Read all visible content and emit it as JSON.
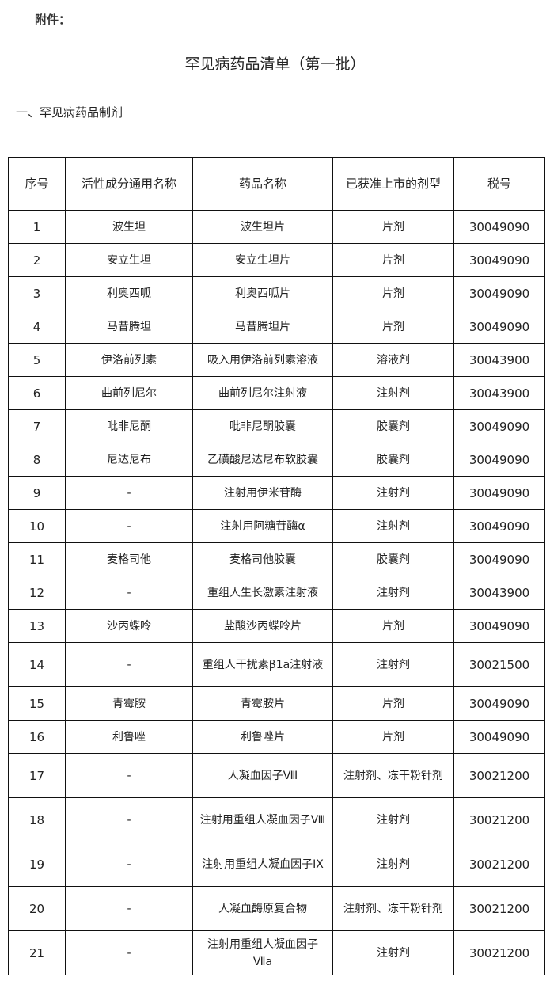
{
  "attachment_label": "附件：",
  "title": "罕见病药品清单（第一批）",
  "section_heading": "一、罕见病药品制剂",
  "table": {
    "headers": [
      "序号",
      "活性成分通用名称",
      "药品名称",
      "已获准上市的剂型",
      "税号"
    ],
    "rows": [
      [
        "1",
        "波生坦",
        "波生坦片",
        "片剂",
        "30049090"
      ],
      [
        "2",
        "安立生坦",
        "安立生坦片",
        "片剂",
        "30049090"
      ],
      [
        "3",
        "利奥西呱",
        "利奥西呱片",
        "片剂",
        "30049090"
      ],
      [
        "4",
        "马昔腾坦",
        "马昔腾坦片",
        "片剂",
        "30049090"
      ],
      [
        "5",
        "伊洛前列素",
        "吸入用伊洛前列素溶液",
        "溶液剂",
        "30043900"
      ],
      [
        "6",
        "曲前列尼尔",
        "曲前列尼尔注射液",
        "注射剂",
        "30043900"
      ],
      [
        "7",
        "吡非尼酮",
        "吡非尼酮胶囊",
        "胶囊剂",
        "30049090"
      ],
      [
        "8",
        "尼达尼布",
        "乙磺酸尼达尼布软胶囊",
        "胶囊剂",
        "30049090"
      ],
      [
        "9",
        "-",
        "注射用伊米苷酶",
        "注射剂",
        "30049090"
      ],
      [
        "10",
        "-",
        "注射用阿糖苷酶α",
        "注射剂",
        "30049090"
      ],
      [
        "11",
        "麦格司他",
        "麦格司他胶囊",
        "胶囊剂",
        "30049090"
      ],
      [
        "12",
        "-",
        "重组人生长激素注射液",
        "注射剂",
        "30043900"
      ],
      [
        "13",
        "沙丙蝶呤",
        "盐酸沙丙蝶呤片",
        "片剂",
        "30049090"
      ],
      [
        "14",
        "-",
        "重组人干扰素β1a注射液",
        "注射剂",
        "30021500"
      ],
      [
        "15",
        "青霉胺",
        "青霉胺片",
        "片剂",
        "30049090"
      ],
      [
        "16",
        "利鲁唑",
        "利鲁唑片",
        "片剂",
        "30049090"
      ],
      [
        "17",
        "-",
        "人凝血因子Ⅷ",
        "注射剂、冻干粉针剂",
        "30021200"
      ],
      [
        "18",
        "-",
        "注射用重组人凝血因子Ⅷ",
        "注射剂",
        "30021200"
      ],
      [
        "19",
        "-",
        "注射用重组人凝血因子IX",
        "注射剂",
        "30021200"
      ],
      [
        "20",
        "-",
        "人凝血酶原复合物",
        "注射剂、冻干粉针剂",
        "30021200"
      ],
      [
        "21",
        "-",
        "注射用重组人凝血因子Ⅶa",
        "注射剂",
        "30021200"
      ]
    ]
  }
}
